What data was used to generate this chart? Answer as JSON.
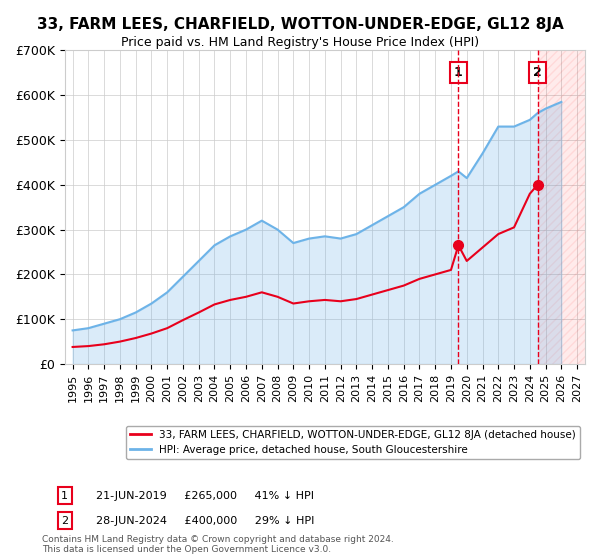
{
  "title": "33, FARM LEES, CHARFIELD, WOTTON-UNDER-EDGE, GL12 8JA",
  "subtitle": "Price paid vs. HM Land Registry's House Price Index (HPI)",
  "ylabel": "",
  "ylim": [
    0,
    700000
  ],
  "yticks": [
    0,
    100000,
    200000,
    300000,
    400000,
    500000,
    600000,
    700000
  ],
  "ytick_labels": [
    "£0",
    "£100K",
    "£200K",
    "£300K",
    "£400K",
    "£500K",
    "£600K",
    "£700K"
  ],
  "hpi_color": "#6db3e8",
  "price_color": "#e8001c",
  "marker_color": "#e8001c",
  "grid_color": "#cccccc",
  "background_color": "#ffffff",
  "sale1_year": 2019.47,
  "sale1_price": 265000,
  "sale1_label": "1",
  "sale1_text": "21-JUN-2019     £265,000     41% ↓ HPI",
  "sale2_year": 2024.49,
  "sale2_price": 400000,
  "sale2_label": "2",
  "sale2_text": "28-JUN-2024     £400,000     29% ↓ HPI",
  "legend_line1": "33, FARM LEES, CHARFIELD, WOTTON-UNDER-EDGE, GL12 8JA (detached house)",
  "legend_line2": "HPI: Average price, detached house, South Gloucestershire",
  "footnote": "Contains HM Land Registry data © Crown copyright and database right 2024.\nThis data is licensed under the Open Government Licence v3.0.",
  "hpi_years": [
    1995,
    1996,
    1997,
    1998,
    1999,
    2000,
    2001,
    2002,
    2003,
    2004,
    2005,
    2006,
    2007,
    2008,
    2009,
    2010,
    2011,
    2012,
    2013,
    2014,
    2015,
    2016,
    2017,
    2018,
    2019,
    2019.47,
    2020,
    2021,
    2022,
    2023,
    2024,
    2024.49,
    2025,
    2026
  ],
  "hpi_values": [
    75000,
    80000,
    90000,
    100000,
    115000,
    135000,
    160000,
    195000,
    230000,
    265000,
    285000,
    300000,
    320000,
    300000,
    270000,
    280000,
    285000,
    280000,
    290000,
    310000,
    330000,
    350000,
    380000,
    400000,
    420000,
    430000,
    415000,
    470000,
    530000,
    530000,
    545000,
    560000,
    570000,
    585000
  ],
  "price_years": [
    1995,
    1996,
    1997,
    1998,
    1999,
    2000,
    2001,
    2002,
    2003,
    2004,
    2005,
    2006,
    2007,
    2008,
    2009,
    2010,
    2011,
    2012,
    2013,
    2014,
    2015,
    2016,
    2017,
    2018,
    2019,
    2019.47,
    2020,
    2021,
    2022,
    2023,
    2024,
    2024.49
  ],
  "price_values": [
    38000,
    40000,
    44000,
    50000,
    58000,
    68000,
    80000,
    98000,
    115000,
    133000,
    143000,
    150000,
    160000,
    150000,
    135000,
    140000,
    143000,
    140000,
    145000,
    155000,
    165000,
    175000,
    190000,
    200000,
    210000,
    265000,
    230000,
    260000,
    290000,
    305000,
    380000,
    400000
  ],
  "xtick_years": [
    1995,
    1996,
    1997,
    1998,
    1999,
    2000,
    2001,
    2002,
    2003,
    2004,
    2005,
    2006,
    2007,
    2008,
    2009,
    2010,
    2011,
    2012,
    2013,
    2014,
    2015,
    2016,
    2017,
    2018,
    2019,
    2020,
    2021,
    2022,
    2023,
    2024,
    2025,
    2026,
    2027
  ],
  "xlim": [
    1994.5,
    2027.5
  ]
}
